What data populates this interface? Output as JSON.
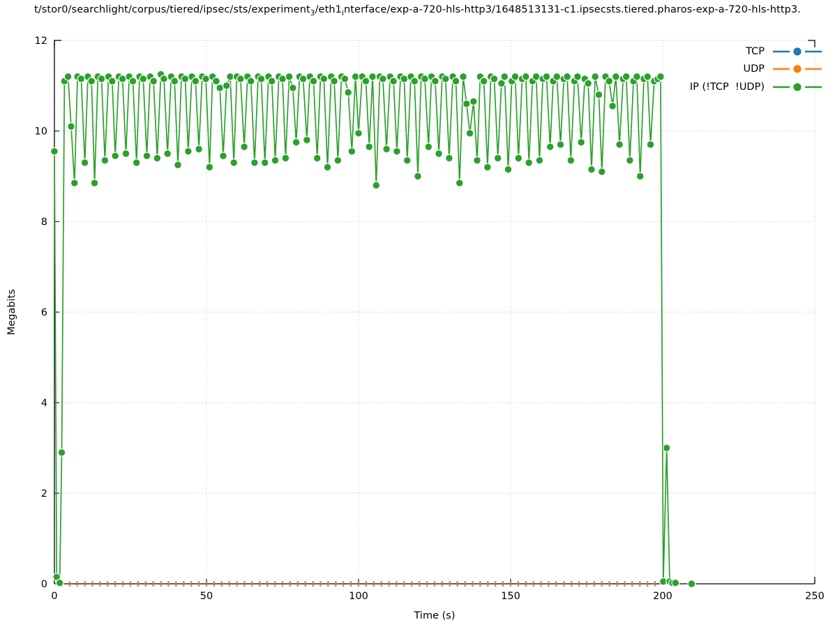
{
  "title": {
    "parts": [
      {
        "t": "t/stor0/searchlight/corpus/tiered/ipsec/sts/experiment"
      },
      {
        "t": "3",
        "sub": true
      },
      {
        "t": "/eth1"
      },
      {
        "t": "i",
        "sub": true
      },
      {
        "t": "nterface/exp-a-720-hls-http3/1648513131-c1.ipsecsts.tiered.pharos-exp-a-720-hls-http3."
      }
    ]
  },
  "legend": {
    "items": [
      {
        "label": "TCP",
        "color": "#1f77b4"
      },
      {
        "label": "UDP",
        "color": "#ff7f0e"
      },
      {
        "label": "IP (!TCP  !UDP)",
        "color": "#2ca02c"
      }
    ]
  },
  "chart_data": {
    "type": "line",
    "title": "t/stor0/searchlight/corpus/tiered/ipsec/sts/experiment₃/eth1ᵢnterface/exp-a-720-hls-http3/1648513131-c1.ipsecsts.tiered.pharos-exp-a-720-hls-http3.",
    "xlabel": "Time (s)",
    "ylabel": "Megabits",
    "xlim": [
      0,
      250
    ],
    "ylim": [
      0,
      12
    ],
    "x_ticks": [
      0,
      50,
      100,
      150,
      200,
      250
    ],
    "y_ticks": [
      0,
      2,
      4,
      6,
      8,
      10,
      12
    ],
    "grid": "dotted",
    "legend_position": "top-right",
    "series": [
      {
        "name": "TCP",
        "color": "#1f77b4",
        "marker": "vertical-dash",
        "points_uniform": {
          "t0": 2.5,
          "t1": 197.5,
          "dt": 2.5,
          "value": 0
        },
        "note_visibility": "all points at 0, drawn beneath UDP markers"
      },
      {
        "name": "UDP",
        "color": "#ff7f0e",
        "marker": "vertical-dash",
        "points_uniform": {
          "t0": 2.5,
          "t1": 197.5,
          "dt": 2.5,
          "value": 0
        }
      },
      {
        "name": "IP (!TCP  !UDP)",
        "color": "#2ca02c",
        "marker": "circle",
        "segments": [
          [
            [
              0,
              9.55
            ],
            [
              0.75,
              0.15
            ],
            [
              1.75,
              0.02
            ],
            [
              2.4,
              2.9
            ],
            [
              3.3,
              11.1
            ],
            [
              4.5,
              11.2
            ],
            [
              5.5,
              10.1
            ],
            [
              6.6,
              8.85
            ],
            [
              7.6,
              11.2
            ],
            [
              8.8,
              11.15
            ],
            [
              10,
              9.3
            ],
            [
              11,
              11.2
            ],
            [
              12.2,
              11.1
            ],
            [
              13.2,
              8.85
            ],
            [
              14.3,
              11.2
            ],
            [
              15.5,
              11.15
            ],
            [
              16.6,
              9.35
            ],
            [
              17.8,
              11.2
            ],
            [
              19,
              11.1
            ],
            [
              20,
              9.45
            ],
            [
              21.2,
              11.2
            ],
            [
              22.4,
              11.15
            ],
            [
              23.5,
              9.5
            ],
            [
              24.6,
              11.2
            ],
            [
              25.8,
              11.1
            ],
            [
              27,
              9.3
            ],
            [
              28,
              11.2
            ],
            [
              29.2,
              11.15
            ],
            [
              30.4,
              9.45
            ],
            [
              31.5,
              11.2
            ],
            [
              32.6,
              11.1
            ],
            [
              33.8,
              9.4
            ],
            [
              35,
              11.25
            ],
            [
              36,
              11.15
            ],
            [
              37.2,
              9.5
            ],
            [
              38.4,
              11.2
            ],
            [
              39.5,
              11.1
            ],
            [
              40.6,
              9.25
            ],
            [
              41.8,
              11.2
            ],
            [
              43,
              11.15
            ],
            [
              44,
              9.55
            ],
            [
              45.2,
              11.2
            ],
            [
              46.4,
              11.1
            ],
            [
              47.5,
              9.6
            ],
            [
              48.6,
              11.2
            ],
            [
              49.8,
              11.15
            ],
            [
              51,
              9.2
            ],
            [
              52,
              11.2
            ],
            [
              53.2,
              11.1
            ],
            [
              54.4,
              10.95
            ],
            [
              55.5,
              9.45
            ],
            [
              56.6,
              11.0
            ],
            [
              57.8,
              11.2
            ],
            [
              59,
              9.3
            ],
            [
              60,
              11.2
            ],
            [
              61.2,
              11.15
            ],
            [
              62.4,
              9.65
            ],
            [
              63.5,
              11.2
            ],
            [
              64.6,
              11.1
            ],
            [
              65.8,
              9.3
            ],
            [
              67,
              11.2
            ],
            [
              68,
              11.15
            ],
            [
              69.2,
              9.3
            ],
            [
              70.4,
              11.2
            ],
            [
              71.5,
              11.1
            ],
            [
              72.6,
              9.35
            ],
            [
              73.8,
              11.2
            ],
            [
              75,
              11.15
            ],
            [
              76,
              9.4
            ],
            [
              77.2,
              11.2
            ],
            [
              78.4,
              10.95
            ],
            [
              79.5,
              9.75
            ],
            [
              80.6,
              11.2
            ],
            [
              81.8,
              11.15
            ],
            [
              83,
              9.8
            ],
            [
              84,
              11.2
            ],
            [
              85.2,
              11.1
            ],
            [
              86.4,
              9.4
            ],
            [
              87.5,
              11.2
            ],
            [
              88.6,
              11.15
            ],
            [
              89.8,
              9.2
            ],
            [
              91,
              11.2
            ],
            [
              92,
              11.1
            ],
            [
              93.2,
              9.35
            ],
            [
              94.4,
              11.2
            ],
            [
              95.5,
              11.15
            ],
            [
              96.6,
              10.85
            ],
            [
              97.8,
              9.55
            ],
            [
              99,
              11.2
            ],
            [
              100,
              9.95
            ],
            [
              101.2,
              11.2
            ],
            [
              102.4,
              11.1
            ],
            [
              103.5,
              9.65
            ],
            [
              104.6,
              11.2
            ],
            [
              105.8,
              8.8
            ],
            [
              107,
              11.2
            ],
            [
              108,
              11.15
            ],
            [
              109.2,
              9.6
            ],
            [
              110.4,
              11.2
            ],
            [
              111.5,
              11.1
            ],
            [
              112.6,
              9.55
            ],
            [
              113.8,
              11.2
            ],
            [
              115,
              11.15
            ],
            [
              116,
              9.35
            ],
            [
              117.2,
              11.2
            ],
            [
              118.4,
              11.1
            ],
            [
              119.5,
              9.0
            ],
            [
              120.6,
              11.2
            ],
            [
              121.8,
              11.15
            ],
            [
              123,
              9.65
            ],
            [
              124,
              11.2
            ],
            [
              125.2,
              11.1
            ],
            [
              126.4,
              9.5
            ],
            [
              127.5,
              11.2
            ],
            [
              128.6,
              11.15
            ],
            [
              129.8,
              9.4
            ],
            [
              131,
              11.2
            ],
            [
              132,
              11.1
            ],
            [
              133.2,
              8.85
            ],
            [
              134.4,
              11.2
            ],
            [
              135.5,
              10.6
            ],
            [
              136.6,
              9.95
            ],
            [
              137.8,
              10.65
            ],
            [
              139,
              9.35
            ],
            [
              140,
              11.2
            ],
            [
              141.2,
              11.1
            ],
            [
              142.4,
              9.2
            ],
            [
              143.5,
              11.2
            ],
            [
              144.6,
              11.15
            ],
            [
              145.8,
              9.4
            ],
            [
              147,
              11.05
            ],
            [
              148,
              11.2
            ],
            [
              149.2,
              9.15
            ],
            [
              150.4,
              11.1
            ],
            [
              151.5,
              11.2
            ],
            [
              152.6,
              9.4
            ],
            [
              153.8,
              11.15
            ],
            [
              155,
              11.2
            ],
            [
              156,
              9.3
            ],
            [
              157.2,
              11.1
            ],
            [
              158.4,
              11.2
            ],
            [
              159.5,
              9.35
            ],
            [
              160.6,
              11.15
            ],
            [
              161.8,
              11.2
            ],
            [
              163,
              9.65
            ],
            [
              164,
              11.1
            ],
            [
              165.2,
              11.2
            ],
            [
              166.4,
              9.7
            ],
            [
              167.5,
              11.15
            ],
            [
              168.6,
              11.2
            ],
            [
              169.8,
              9.35
            ],
            [
              171,
              11.1
            ],
            [
              172,
              11.2
            ],
            [
              173.2,
              9.75
            ],
            [
              174.4,
              11.15
            ],
            [
              175.5,
              11.05
            ],
            [
              176.6,
              9.15
            ],
            [
              177.8,
              11.2
            ],
            [
              179,
              10.8
            ],
            [
              180,
              9.1
            ],
            [
              181.2,
              11.2
            ],
            [
              182.4,
              11.1
            ],
            [
              183.5,
              10.55
            ],
            [
              184.6,
              11.2
            ],
            [
              185.8,
              9.7
            ],
            [
              187,
              11.15
            ],
            [
              188,
              11.2
            ],
            [
              189.2,
              9.35
            ],
            [
              190.4,
              11.1
            ],
            [
              191.5,
              11.2
            ],
            [
              192.6,
              9.0
            ],
            [
              193.8,
              11.15
            ],
            [
              195,
              11.2
            ],
            [
              196,
              9.7
            ],
            [
              197.2,
              11.1
            ],
            [
              198.4,
              11.15
            ],
            [
              199.3,
              11.2
            ],
            [
              200.2,
              0.05
            ],
            [
              201.3,
              3.0
            ],
            [
              202.3,
              0.05
            ],
            [
              203.2,
              0.02
            ],
            [
              204.2,
              0.02
            ]
          ],
          [
            [
              209.5,
              0
            ]
          ]
        ]
      }
    ]
  }
}
